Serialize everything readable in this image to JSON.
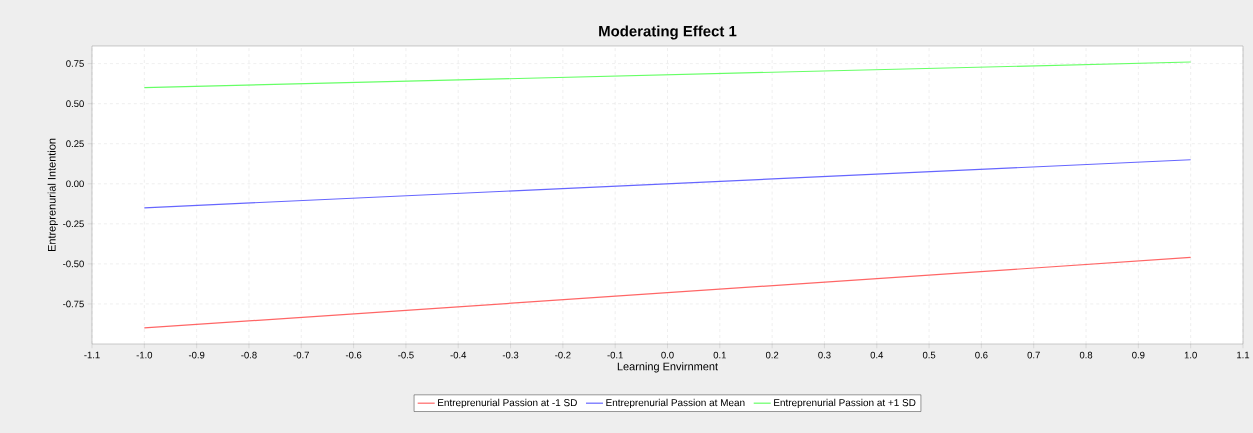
{
  "chart_data": {
    "type": "line",
    "title": "Moderating Effect 1",
    "xlabel": "Learning Envirnment",
    "ylabel": "Entreprenurial Intention",
    "x": [
      -1.0,
      1.0
    ],
    "series": [
      {
        "name": "Entreprenurial Passion at -1 SD",
        "color": "#ff6666",
        "values": [
          -0.9,
          -0.46
        ]
      },
      {
        "name": "Entreprenurial Passion at Mean",
        "color": "#6666ff",
        "values": [
          -0.15,
          0.15
        ]
      },
      {
        "name": "Entreprenurial Passion at +1 SD",
        "color": "#66ff66",
        "values": [
          0.6,
          0.76
        ]
      }
    ],
    "xlim": [
      -1.1,
      1.1
    ],
    "ylim": [
      -1.0,
      0.86
    ],
    "xticks": [
      {
        "value": -1.1,
        "label": "-1.1"
      },
      {
        "value": -1.0,
        "label": "-1.0"
      },
      {
        "value": -0.9,
        "label": "-0.9"
      },
      {
        "value": -0.8,
        "label": "-0.8"
      },
      {
        "value": -0.7,
        "label": "-0.7"
      },
      {
        "value": -0.6,
        "label": "-0.6"
      },
      {
        "value": -0.5,
        "label": "-0.5"
      },
      {
        "value": -0.4,
        "label": "-0.4"
      },
      {
        "value": -0.3,
        "label": "-0.3"
      },
      {
        "value": -0.2,
        "label": "-0.2"
      },
      {
        "value": -0.1,
        "label": "-0.1"
      },
      {
        "value": 0.0,
        "label": "0.0"
      },
      {
        "value": 0.1,
        "label": "0.1"
      },
      {
        "value": 0.2,
        "label": "0.2"
      },
      {
        "value": 0.3,
        "label": "0.3"
      },
      {
        "value": 0.4,
        "label": "0.4"
      },
      {
        "value": 0.5,
        "label": "0.5"
      },
      {
        "value": 0.6,
        "label": "0.6"
      },
      {
        "value": 0.7,
        "label": "0.7"
      },
      {
        "value": 0.8,
        "label": "0.8"
      },
      {
        "value": 0.9,
        "label": "0.9"
      },
      {
        "value": 1.0,
        "label": "1.0"
      },
      {
        "value": 1.1,
        "label": "1.1"
      }
    ],
    "yticks": [
      {
        "value": -0.75,
        "label": "-0.75"
      },
      {
        "value": -0.5,
        "label": "-0.50"
      },
      {
        "value": -0.25,
        "label": "-0.25"
      },
      {
        "value": 0.0,
        "label": "0.00"
      },
      {
        "value": 0.25,
        "label": "0.25"
      },
      {
        "value": 0.5,
        "label": "0.50"
      },
      {
        "value": 0.75,
        "label": "0.75"
      }
    ],
    "grid": true,
    "legend": "bottom",
    "marker": "none",
    "line_style": "solid"
  }
}
